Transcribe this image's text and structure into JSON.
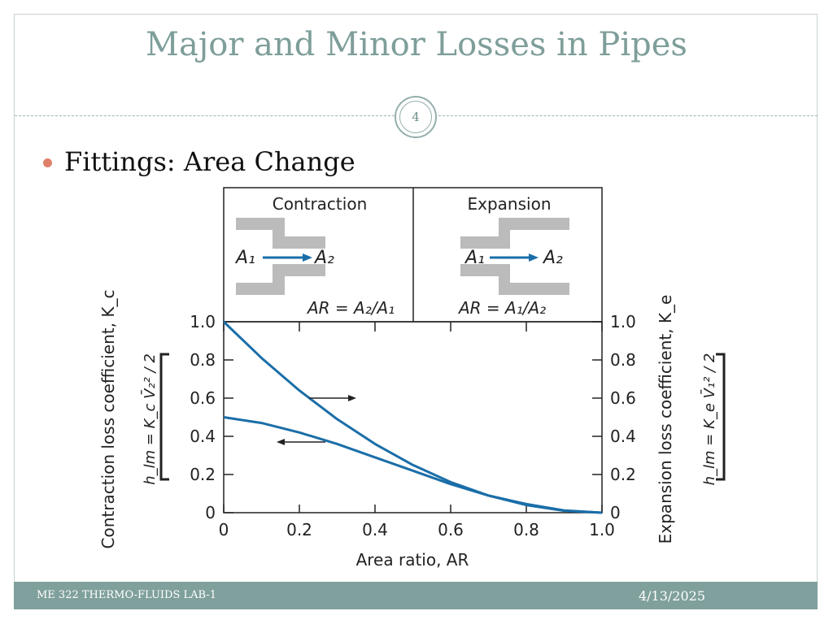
{
  "slide": {
    "title": "Major and Minor Losses in Pipes",
    "number": "4",
    "bullet": "Fittings: Area Change",
    "footer_left": "ME 322 THERMO-FLUIDS LAB-1",
    "footer_right": "4/13/2025"
  },
  "colors": {
    "title": "#7e9e9a",
    "footer_bg": "#7fa09c",
    "bullet": "#e0806a",
    "curve": "#1a6ea8",
    "wall": "#bbbbbb"
  },
  "chart_data": {
    "type": "line",
    "xlabel": "Area ratio, AR",
    "ylabel_left": "Contraction loss coefficient, K_c",
    "ylabel_right": "Expansion loss coefficient, K_e",
    "xlim": [
      0,
      1.0
    ],
    "ylim": [
      0,
      1.0
    ],
    "x_ticks": [
      "0",
      "0.2",
      "0.4",
      "0.6",
      "0.8",
      "1.0"
    ],
    "y_ticks": [
      "0",
      "0.2",
      "0.4",
      "0.6",
      "0.8",
      "1.0"
    ],
    "series": [
      {
        "name": "Expansion",
        "x": [
          0,
          0.1,
          0.2,
          0.3,
          0.4,
          0.5,
          0.6,
          0.7,
          0.8,
          0.9,
          1.0
        ],
        "values": [
          1.0,
          0.81,
          0.64,
          0.49,
          0.36,
          0.25,
          0.16,
          0.09,
          0.04,
          0.01,
          0.0
        ]
      },
      {
        "name": "Contraction",
        "x": [
          0,
          0.1,
          0.2,
          0.3,
          0.4,
          0.5,
          0.6,
          0.7,
          0.8,
          0.9,
          1.0
        ],
        "values": [
          0.5,
          0.47,
          0.42,
          0.36,
          0.29,
          0.22,
          0.15,
          0.09,
          0.045,
          0.012,
          0.0
        ]
      }
    ],
    "insets": {
      "contraction_title": "Contraction",
      "contraction_formula": "AR = A₂/A₁",
      "expansion_title": "Expansion",
      "expansion_formula": "AR = A₁/A₂",
      "a1_label": "A₁",
      "a2_label": "A₂"
    },
    "left_bracket_formula": "h_lm = K_c V̄₂² / 2",
    "right_bracket_formula": "h_lm = K_e V̄₁² / 2",
    "grid": false
  }
}
